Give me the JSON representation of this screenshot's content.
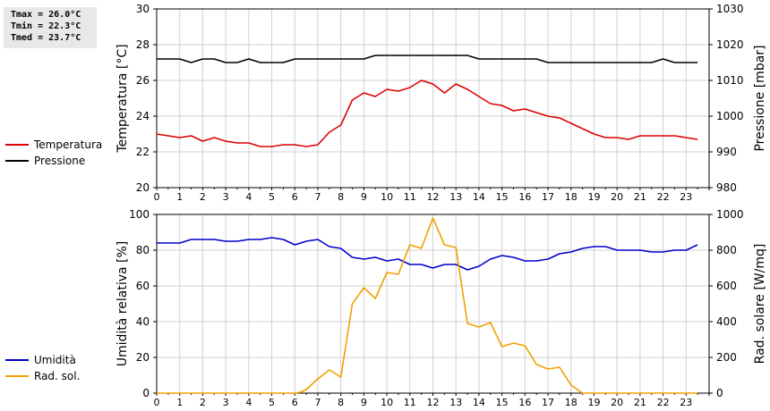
{
  "stats": {
    "tmax": "Tmax = 26.0°C",
    "tmin": "Tmin = 22.3°C",
    "tmed": "Tmed = 23.7°C"
  },
  "chart_data": [
    {
      "type": "line",
      "x_ticks": [
        "0",
        "1",
        "2",
        "3",
        "4",
        "5",
        "6",
        "7",
        "8",
        "9",
        "10",
        "11",
        "12",
        "13",
        "14",
        "15",
        "16",
        "17",
        "18",
        "19",
        "20",
        "21",
        "22",
        "23"
      ],
      "xlim": [
        0,
        24
      ],
      "ylabel": "Temperatura [°C]",
      "ylim": [
        20,
        30
      ],
      "y_ticks": [
        "20",
        "22",
        "24",
        "26",
        "28",
        "30"
      ],
      "y2label": "Pressione [mbar]",
      "y2lim": [
        980,
        1030
      ],
      "y2_ticks": [
        "980",
        "990",
        "1000",
        "1010",
        "1020",
        "1030"
      ],
      "grid": true,
      "legend_position": "left",
      "series": [
        {
          "name": "Temperatura",
          "color": "#dd0000",
          "axis": "left",
          "x": [
            0,
            0.5,
            1,
            1.5,
            2,
            2.5,
            3,
            3.5,
            4,
            4.5,
            5,
            5.5,
            6,
            6.5,
            7,
            7.5,
            8,
            8.5,
            9,
            9.5,
            10,
            10.5,
            11,
            11.5,
            12,
            12.5,
            13,
            13.5,
            14,
            14.5,
            15,
            15.5,
            16,
            16.5,
            17,
            17.5,
            18,
            18.5,
            19,
            19.5,
            20,
            20.5,
            21,
            21.5,
            22,
            22.5,
            23,
            23.5
          ],
          "y": [
            23.0,
            22.9,
            22.8,
            22.9,
            22.6,
            22.8,
            22.6,
            22.5,
            22.5,
            22.3,
            22.3,
            22.4,
            22.4,
            22.3,
            22.4,
            23.1,
            23.5,
            24.9,
            25.3,
            25.1,
            25.5,
            25.4,
            25.6,
            26.0,
            25.8,
            25.3,
            25.8,
            25.5,
            25.1,
            24.7,
            24.6,
            24.3,
            24.4,
            24.2,
            24.0,
            23.9,
            23.6,
            23.3,
            23.0,
            22.8,
            22.8,
            22.7,
            22.9,
            22.9,
            22.9,
            22.9,
            22.8,
            22.7
          ]
        },
        {
          "name": "Pressione",
          "color": "#000000",
          "axis": "right",
          "x": [
            0,
            0.5,
            1,
            1.5,
            2,
            2.5,
            3,
            3.5,
            4,
            4.5,
            5,
            5.5,
            6,
            6.5,
            7,
            7.5,
            8,
            8.5,
            9,
            9.5,
            10,
            10.5,
            11,
            11.5,
            12,
            12.5,
            13,
            13.5,
            14,
            14.5,
            15,
            15.5,
            16,
            16.5,
            17,
            17.5,
            18,
            18.5,
            19,
            19.5,
            20,
            20.5,
            21,
            21.5,
            22,
            22.5,
            23,
            23.5
          ],
          "y": [
            1016,
            1016,
            1016,
            1015,
            1016,
            1016,
            1015,
            1015,
            1016,
            1015,
            1015,
            1015,
            1016,
            1016,
            1016,
            1016,
            1016,
            1016,
            1016,
            1017,
            1017,
            1017,
            1017,
            1017,
            1017,
            1017,
            1017,
            1017,
            1016,
            1016,
            1016,
            1016,
            1016,
            1016,
            1015,
            1015,
            1015,
            1015,
            1015,
            1015,
            1015,
            1015,
            1015,
            1015,
            1016,
            1015,
            1015,
            1015
          ]
        }
      ]
    },
    {
      "type": "line",
      "x_ticks": [
        "0",
        "1",
        "2",
        "3",
        "4",
        "5",
        "6",
        "7",
        "8",
        "9",
        "10",
        "11",
        "12",
        "13",
        "14",
        "15",
        "16",
        "17",
        "18",
        "19",
        "20",
        "21",
        "22",
        "23"
      ],
      "xlim": [
        0,
        24
      ],
      "ylabel": "Umidità relativa [%]",
      "ylim": [
        0,
        100
      ],
      "y_ticks": [
        "0",
        "20",
        "40",
        "60",
        "80",
        "100"
      ],
      "y2label": "Rad. solare [W/mq]",
      "y2lim": [
        0,
        1000
      ],
      "y2_ticks": [
        "0",
        "200",
        "400",
        "600",
        "800",
        "1000"
      ],
      "grid": true,
      "legend_position": "left",
      "series": [
        {
          "name": "Umidità",
          "color": "#0000cc",
          "axis": "left",
          "x": [
            0,
            0.5,
            1,
            1.5,
            2,
            2.5,
            3,
            3.5,
            4,
            4.5,
            5,
            5.5,
            6,
            6.5,
            7,
            7.5,
            8,
            8.5,
            9,
            9.5,
            10,
            10.5,
            11,
            11.5,
            12,
            12.5,
            13,
            13.5,
            14,
            14.5,
            15,
            15.5,
            16,
            16.5,
            17,
            17.5,
            18,
            18.5,
            19,
            19.5,
            20,
            20.5,
            21,
            21.5,
            22,
            22.5,
            23,
            23.5
          ],
          "y": [
            84,
            84,
            84,
            86,
            86,
            86,
            85,
            85,
            86,
            86,
            87,
            86,
            83,
            85,
            86,
            82,
            81,
            76,
            75,
            76,
            74,
            75,
            72,
            72,
            70,
            72,
            72,
            69,
            71,
            75,
            77,
            76,
            74,
            74,
            75,
            78,
            79,
            81,
            82,
            82,
            80,
            80,
            80,
            79,
            79,
            80,
            80,
            83
          ]
        },
        {
          "name": "Rad. sol.",
          "color": "#f0a000",
          "axis": "right",
          "x": [
            0,
            0.5,
            1,
            1.5,
            2,
            2.5,
            3,
            3.5,
            4,
            4.5,
            5,
            5.5,
            6,
            6.25,
            6.5,
            7,
            7.5,
            7.75,
            8,
            8.5,
            9,
            9.5,
            10,
            10.5,
            11,
            11.5,
            12,
            12.5,
            13,
            13.5,
            14,
            14.5,
            15,
            15.5,
            16,
            16.5,
            17,
            17.5,
            18,
            18.5,
            19,
            19.5,
            20,
            20.5,
            21,
            21.5,
            22,
            22.5,
            23,
            23.5
          ],
          "y": [
            0,
            0,
            0,
            0,
            0,
            0,
            0,
            0,
            0,
            0,
            0,
            0,
            0,
            5,
            20,
            80,
            130,
            110,
            90,
            500,
            590,
            530,
            675,
            665,
            830,
            810,
            980,
            830,
            815,
            390,
            370,
            395,
            260,
            280,
            265,
            160,
            135,
            145,
            45,
            0,
            0,
            0,
            0,
            0,
            0,
            0,
            0,
            0,
            0,
            0
          ]
        }
      ]
    }
  ]
}
